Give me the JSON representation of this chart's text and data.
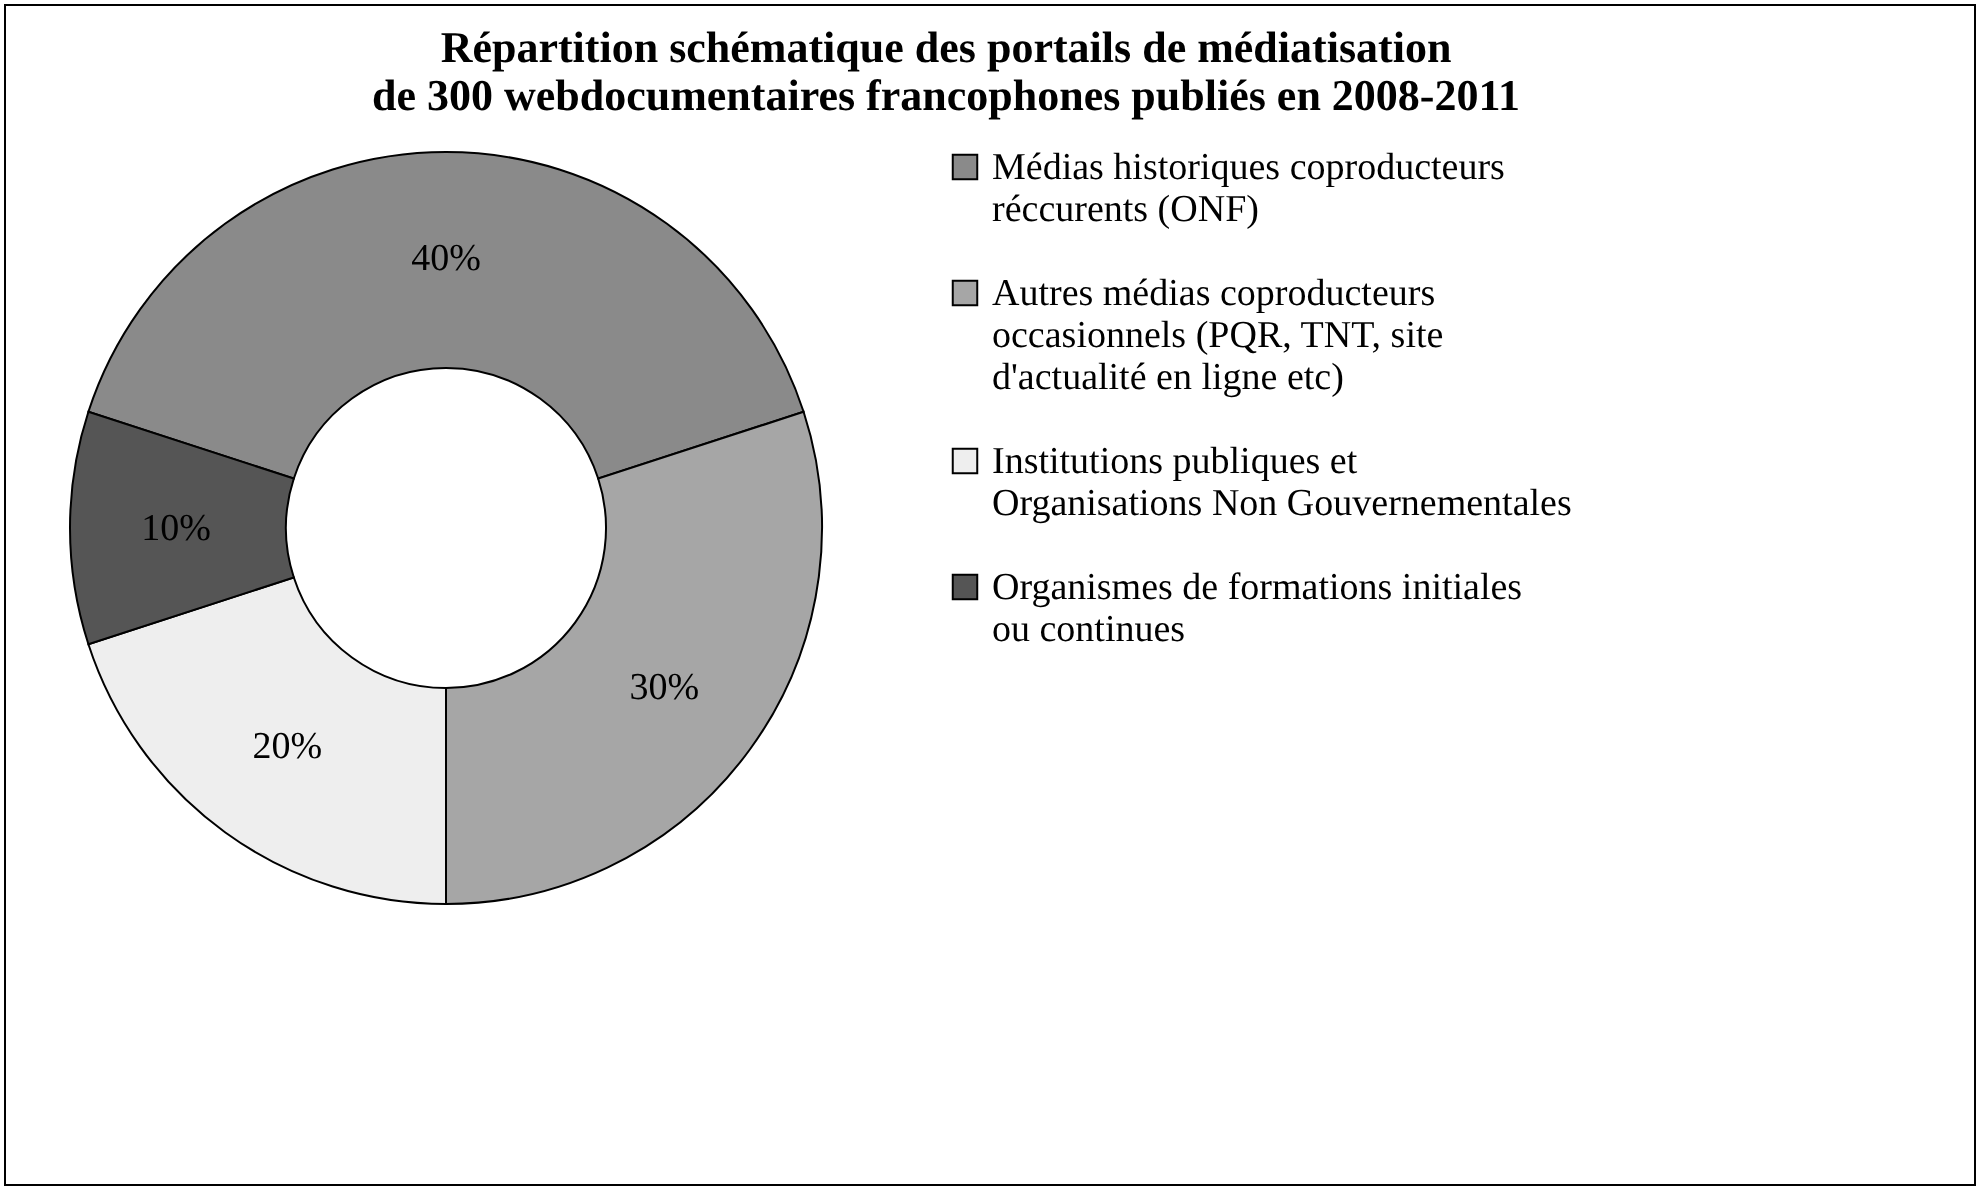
{
  "chart_data": {
    "type": "donut",
    "title": "Répartition schématique des portails de médiatisation\nde 300 webdocumentaires francophones publiés en 2008-2011",
    "categories": [
      "Médias historiques coproducteurs réccurents (ONF)",
      "Autres médias coproducteurs occasionnels (PQR, TNT, site d'actualité en ligne etc)",
      "Institutions publiques et Organisations Non Gouvernementales",
      "Organismes de formations initiales ou continues"
    ],
    "values": [
      40,
      30,
      20,
      10
    ],
    "colors": [
      "#8a8a8a",
      "#a6a6a6",
      "#eeeeee",
      "#555555"
    ],
    "value_labels": [
      "40%",
      "30%",
      "20%",
      "10%"
    ],
    "legend": "right"
  }
}
